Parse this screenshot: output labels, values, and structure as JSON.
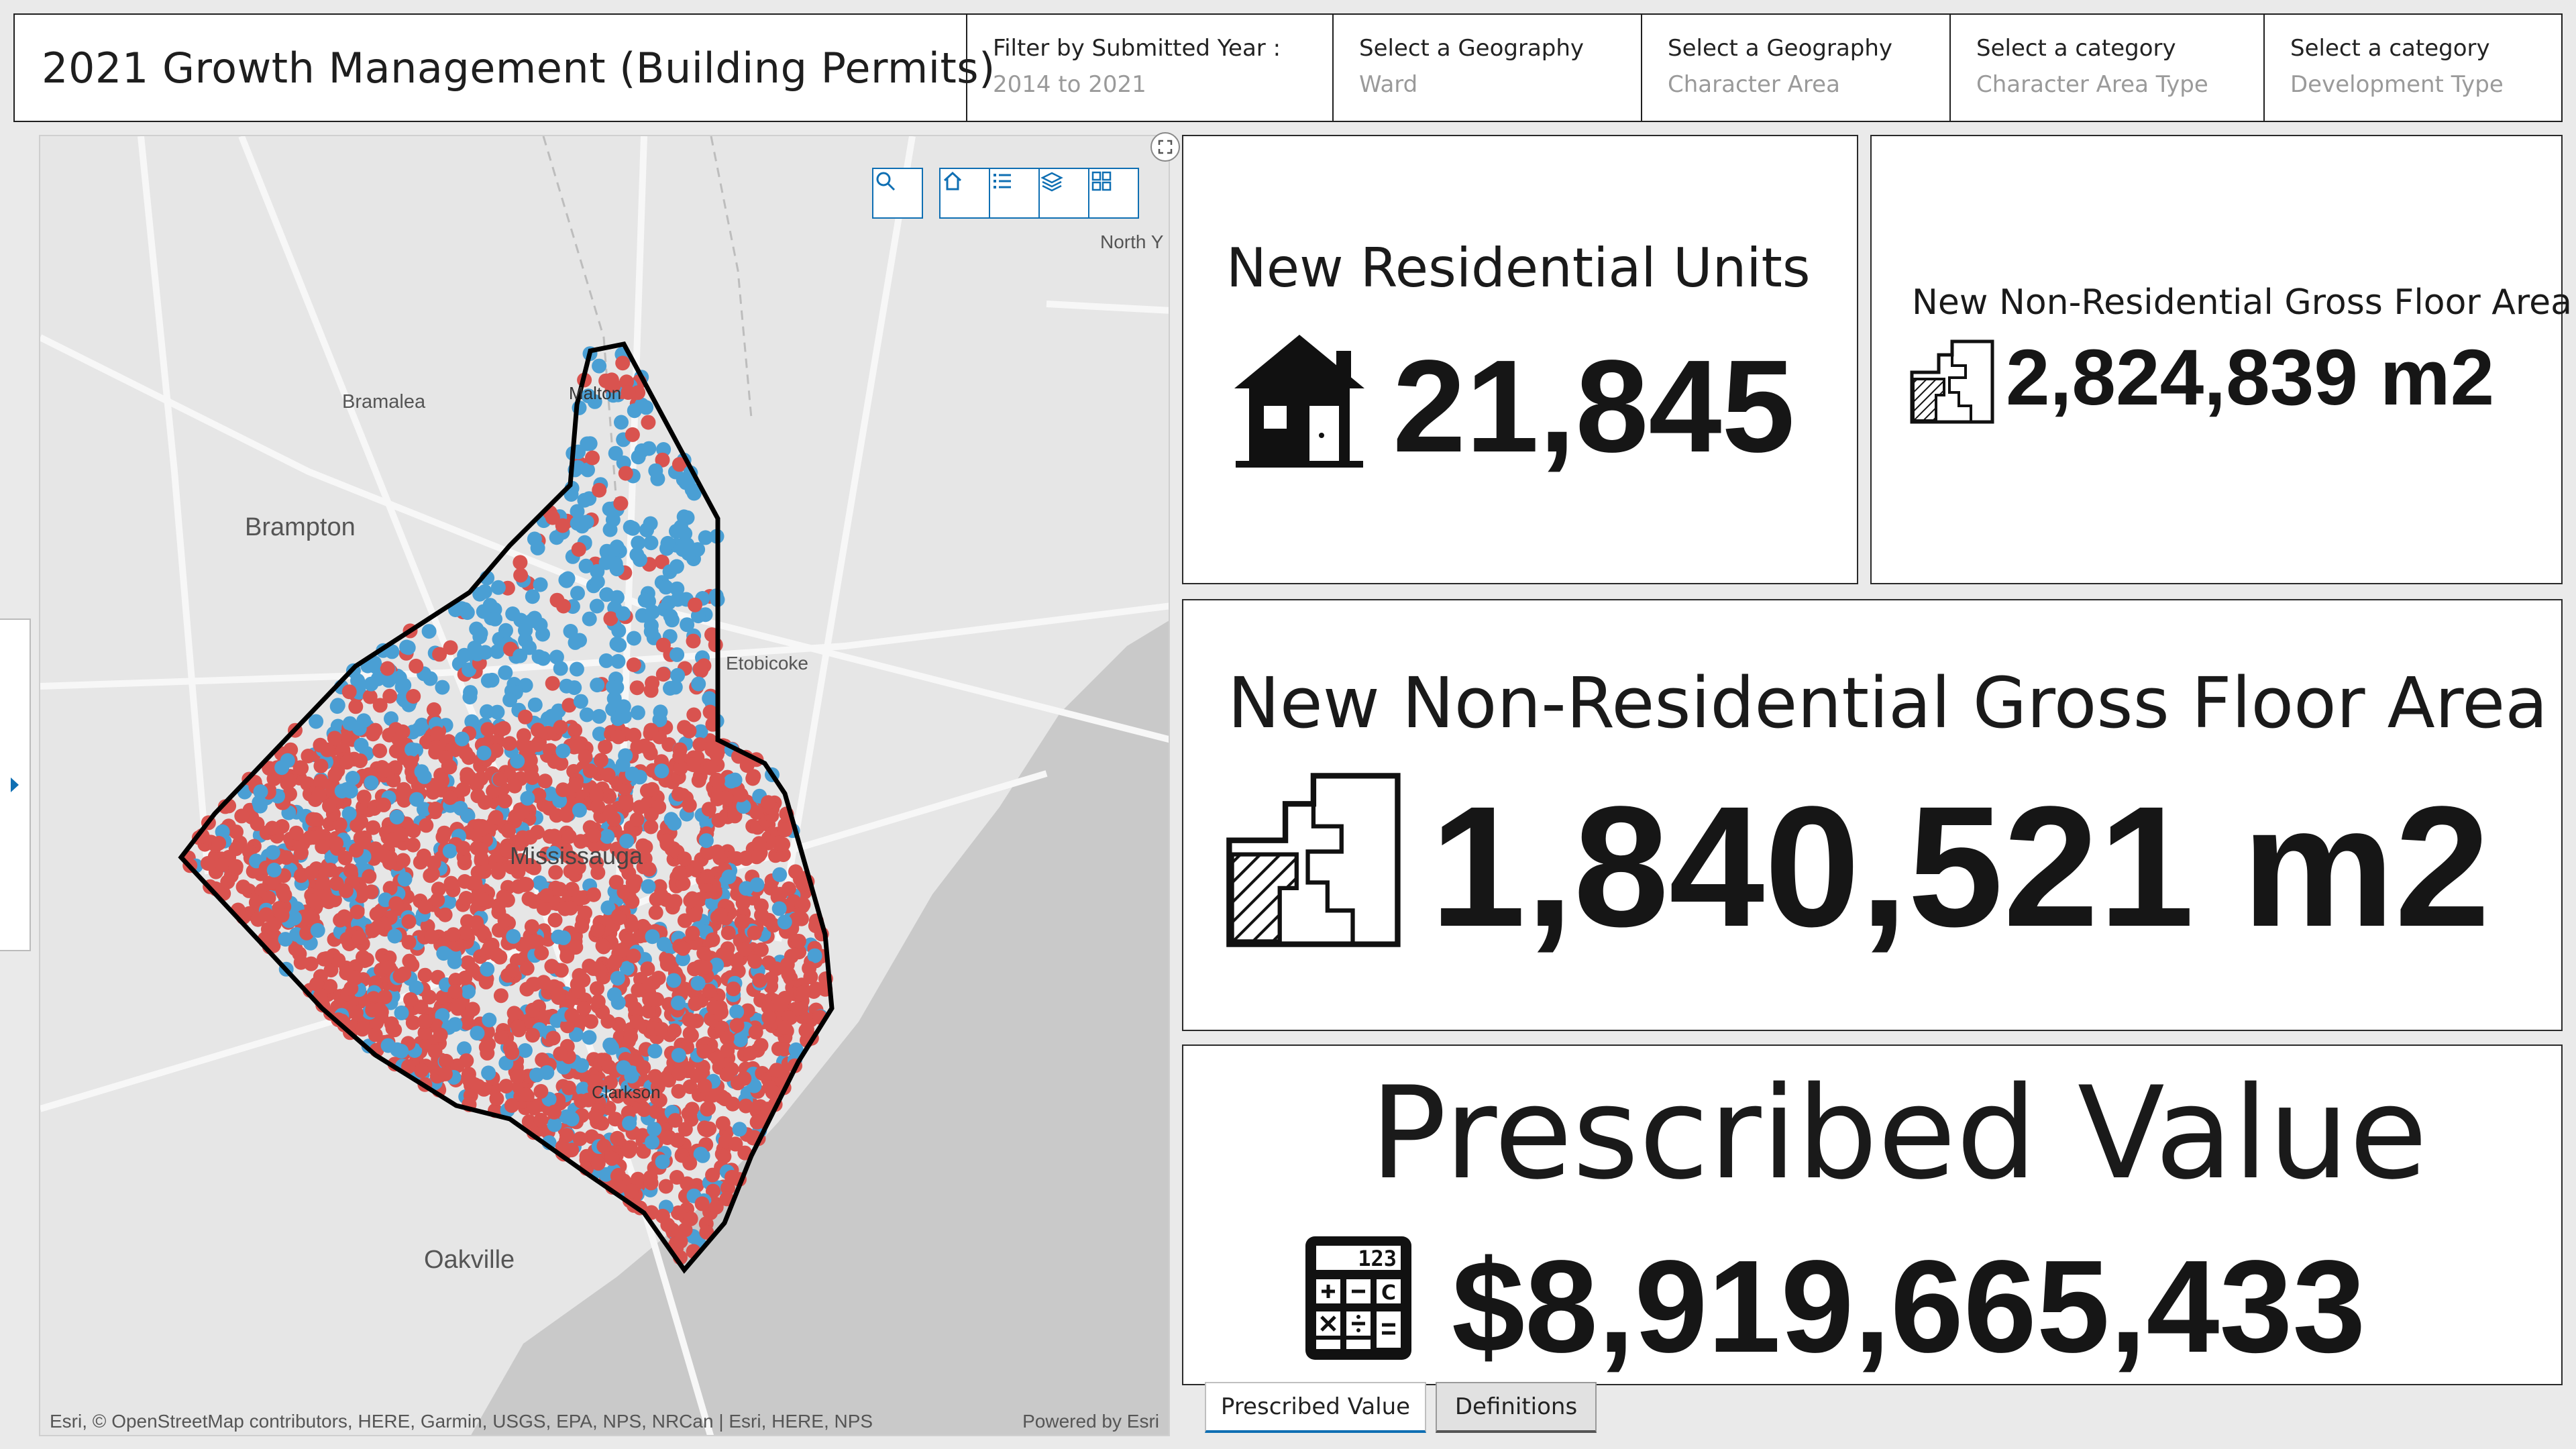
{
  "header": {
    "title": "2021 Growth Management (Building Permits)",
    "filters": [
      {
        "label": "Filter by Submitted Year :",
        "value": "2014 to 2021"
      },
      {
        "label": "Select a Geography",
        "value": "Ward"
      },
      {
        "label": "Select a Geography",
        "value": "Character Area"
      },
      {
        "label": "Select a category",
        "value": "Character Area Type"
      },
      {
        "label": "Select a category",
        "value": "Development Type"
      }
    ]
  },
  "map": {
    "labels": {
      "north_y": "North Y",
      "bramalea": "Bramalea",
      "brampton": "Brampton",
      "malton": "Malton",
      "etobicoke": "Etobicoke",
      "mississauga": "Mississauga",
      "clarkson": "Clarkson",
      "oakville": "Oakville"
    },
    "attribution": "Esri, © OpenStreetMap contributors, HERE, Garmin, USGS, EPA, NPS, NRCan | Esri, HERE, NPS",
    "powered_by": "Powered by Esri",
    "colors": {
      "residential": "#d9534f",
      "non_residential": "#4a9fd4",
      "boundary": "#000000",
      "water": "#c9c9c9"
    }
  },
  "cards": {
    "residential_units": {
      "title": "New Residential Units",
      "value": "21,845",
      "icon": "house-icon"
    },
    "nonres_gfa_small": {
      "title": "New Non-Residential Gross Floor Area",
      "value": "2,824,839 m2",
      "icon": "floor-plan-icon"
    },
    "nonres_gfa_large": {
      "title": "New Non-Residential Gross Floor Area",
      "value": "1,840,521 m2",
      "icon": "floor-plan-icon"
    },
    "prescribed_value": {
      "title": "Prescribed Value",
      "value": "$8,919,665,433",
      "icon": "calculator-icon"
    }
  },
  "tabs": {
    "prescribed_value": "Prescribed Value",
    "definitions": "Definitions"
  }
}
